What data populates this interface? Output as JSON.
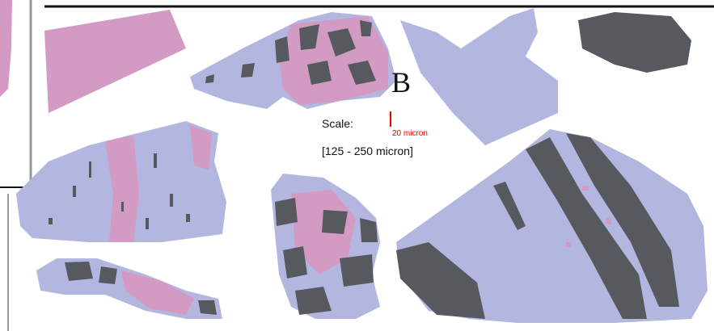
{
  "panel_label": "B",
  "scale": {
    "label": "Scale:",
    "bar_label": "20 micron",
    "range": "[125 - 250 micron]"
  }
}
